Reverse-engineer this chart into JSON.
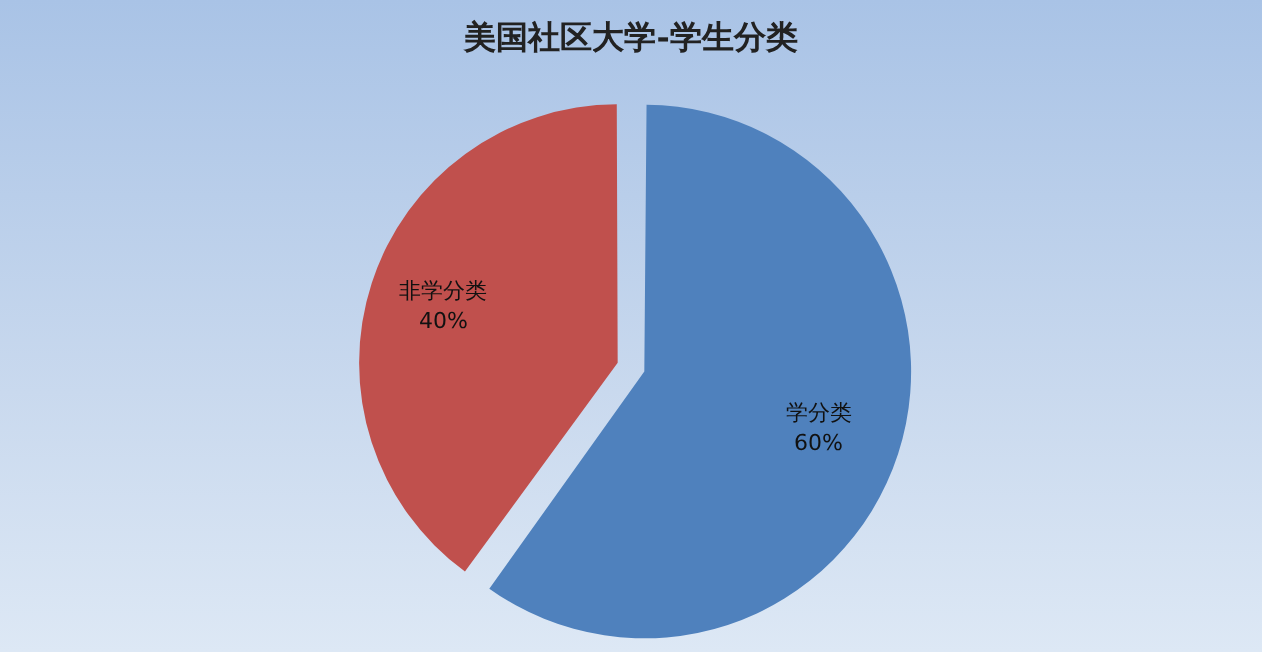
{
  "chart_data": {
    "type": "pie",
    "title": "美国社区大学-学生分类",
    "categories": [
      "学分类",
      "非学分类"
    ],
    "values": [
      60,
      40
    ],
    "value_labels": [
      "60%",
      "40%"
    ],
    "colors": [
      "#4f81bd",
      "#c0504d"
    ],
    "legend": false
  }
}
